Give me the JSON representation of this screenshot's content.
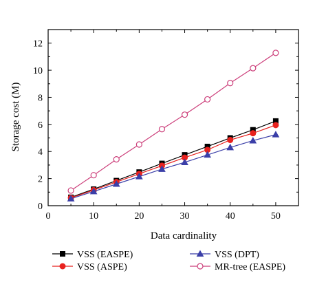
{
  "chart_data": {
    "type": "line",
    "xlabel": "Data cardinality",
    "ylabel": "Storage cost (M)",
    "xlim": [
      0,
      55
    ],
    "ylim": [
      0,
      13
    ],
    "xticks": [
      0,
      10,
      20,
      30,
      40,
      50
    ],
    "yticks": [
      0,
      2,
      4,
      6,
      8,
      10,
      12
    ],
    "grid": false,
    "legend_position": "bottom",
    "x": [
      5,
      10,
      15,
      20,
      25,
      30,
      35,
      40,
      45,
      50
    ],
    "series": [
      {
        "name": "VSS (EASPE)",
        "color": "#000000",
        "marker": "square",
        "values": [
          0.62,
          1.22,
          1.85,
          2.48,
          3.12,
          3.75,
          4.37,
          5.0,
          5.6,
          6.25
        ]
      },
      {
        "name": "VSS (ASPE)",
        "color": "#e8221f",
        "marker": "circle",
        "values": [
          0.58,
          1.15,
          1.75,
          2.35,
          2.95,
          3.55,
          4.12,
          4.85,
          5.35,
          5.95
        ]
      },
      {
        "name": "VSS (DPT)",
        "color": "#3b3fa8",
        "marker": "triangle",
        "values": [
          0.52,
          1.05,
          1.6,
          2.15,
          2.7,
          3.2,
          3.75,
          4.3,
          4.8,
          5.25
        ]
      },
      {
        "name": "MR-tree (EASPE)",
        "color": "#cc3e7a",
        "marker": "open-circle",
        "values": [
          1.12,
          2.25,
          3.42,
          4.52,
          5.65,
          6.72,
          7.85,
          9.05,
          10.15,
          11.28
        ]
      }
    ]
  }
}
